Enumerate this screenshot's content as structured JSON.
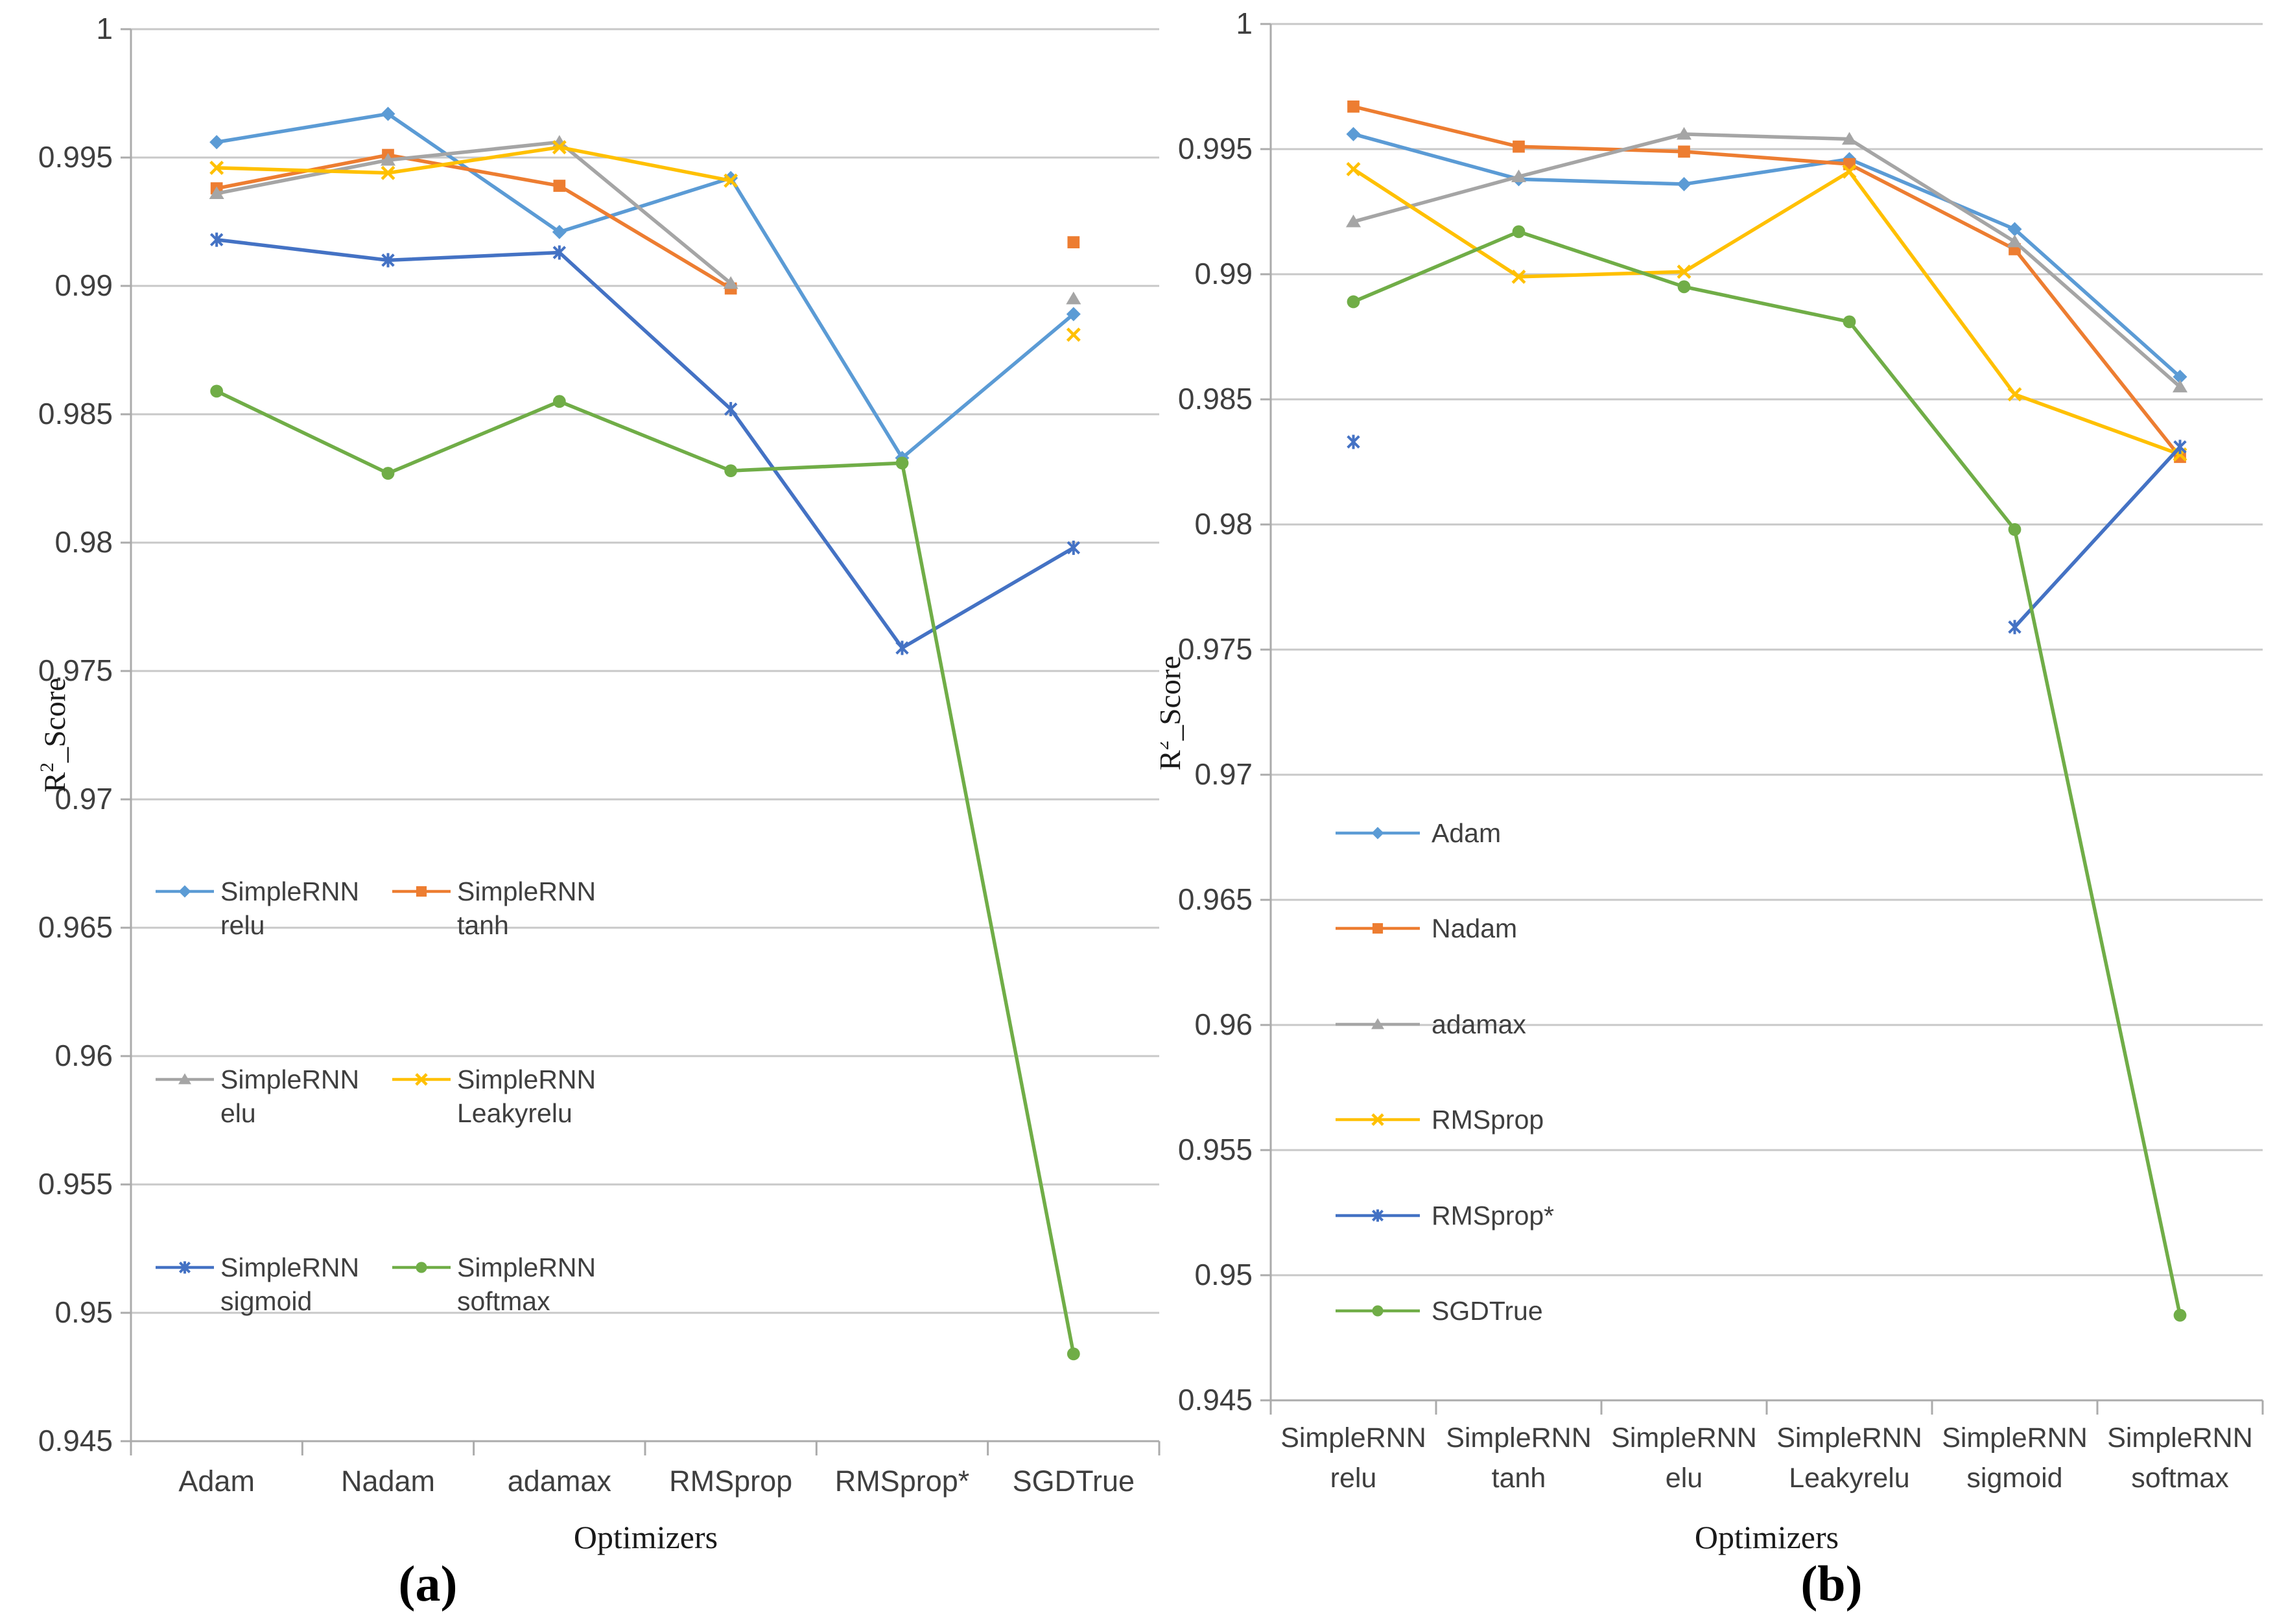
{
  "figure": {
    "background": "#ffffff",
    "grid_color": "#c8c8c8",
    "axis_color": "#ababab",
    "tick_text_color": "#3f3f3f",
    "title_text_color": "#1a1a1a",
    "series_colors": {
      "blue": "#5B9BD5",
      "orange": "#ED7D31",
      "gray": "#A5A5A5",
      "gold": "#FFC000",
      "dark_blue": "#4472C4",
      "green": "#70AD47"
    }
  },
  "chart_data": [
    {
      "type": "line",
      "caption": "(a)",
      "xlabel": "Optimizers",
      "ylabel": {
        "base": "R",
        "sup": "2",
        "rest": "_Score"
      },
      "ylim": [
        0.945,
        1.0
      ],
      "ytick_step": 0.005,
      "ytick_labels": [
        "1",
        "0.995",
        "0.99",
        "0.985",
        "0.98",
        "0.975",
        "0.97",
        "0.965",
        "0.96",
        "0.955",
        "0.95",
        "0.945"
      ],
      "grid": true,
      "legend_position": "inside-left-two-column",
      "categories": [
        "Adam",
        "Nadam",
        "adamax",
        "RMSprop",
        "RMSprop*",
        "SGDTrue"
      ],
      "series": [
        {
          "name": "SimpleRNN relu",
          "legend_lines": [
            "SimpleRNN",
            "relu"
          ],
          "color": "#5B9BD5",
          "marker": "diamond",
          "values": [
            0.9956,
            0.9967,
            0.9921,
            0.9942,
            0.9833,
            0.9889
          ]
        },
        {
          "name": "SimpleRNN tanh",
          "legend_lines": [
            "SimpleRNN",
            "tanh"
          ],
          "color": "#ED7D31",
          "marker": "square",
          "values": [
            0.9938,
            0.9951,
            0.9939,
            0.9899,
            null,
            0.9917
          ]
        },
        {
          "name": "SimpleRNN elu",
          "legend_lines": [
            "SimpleRNN",
            "elu"
          ],
          "color": "#A5A5A5",
          "marker": "triangle",
          "values": [
            0.9936,
            0.9949,
            0.9956,
            0.9901,
            null,
            0.9895
          ]
        },
        {
          "name": "SimpleRNN Leakyrelu",
          "legend_lines": [
            "SimpleRNN",
            "Leakyrelu"
          ],
          "color": "#FFC000",
          "marker": "x",
          "values": [
            0.9946,
            0.9944,
            0.9954,
            0.9941,
            null,
            0.9881
          ]
        },
        {
          "name": "SimpleRNN sigmoid",
          "legend_lines": [
            "SimpleRNN",
            "sigmoid"
          ],
          "color": "#4472C4",
          "marker": "asterisk",
          "values": [
            0.9918,
            0.991,
            0.9913,
            0.9852,
            0.9759,
            0.9798
          ]
        },
        {
          "name": "SimpleRNN softmax",
          "legend_lines": [
            "SimpleRNN",
            "softmax"
          ],
          "color": "#70AD47",
          "marker": "circle",
          "values": [
            0.9859,
            0.9827,
            0.9855,
            0.9828,
            0.9831,
            0.9484
          ]
        }
      ]
    },
    {
      "type": "line",
      "caption": "(b)",
      "xlabel": "Optimizers",
      "ylabel": {
        "base": "R",
        "sup": "2",
        "rest": "_Score"
      },
      "ylim": [
        0.945,
        1.0
      ],
      "ytick_step": 0.005,
      "ytick_labels": [
        "1",
        "0.995",
        "0.99",
        "0.985",
        "0.98",
        "0.975",
        "0.97",
        "0.965",
        "0.96",
        "0.955",
        "0.95",
        "0.945"
      ],
      "grid": true,
      "legend_position": "inside-left-column",
      "categories": [
        "SimpleRNN relu",
        "SimpleRNN tanh",
        "SimpleRNN elu",
        "SimpleRNN Leakyrelu",
        "SimpleRNN sigmoid",
        "SimpleRNN softmax"
      ],
      "category_lines": [
        [
          "SimpleRNN",
          "relu"
        ],
        [
          "SimpleRNN",
          "tanh"
        ],
        [
          "SimpleRNN",
          "elu"
        ],
        [
          "SimpleRNN",
          "Leakyrelu"
        ],
        [
          "SimpleRNN",
          "sigmoid"
        ],
        [
          "SimpleRNN",
          "softmax"
        ]
      ],
      "series": [
        {
          "name": "Adam",
          "legend_lines": [
            "Adam"
          ],
          "color": "#5B9BD5",
          "marker": "diamond",
          "values": [
            0.9956,
            0.9938,
            0.9936,
            0.9946,
            0.9918,
            0.9859
          ]
        },
        {
          "name": "Nadam",
          "legend_lines": [
            "Nadam"
          ],
          "color": "#ED7D31",
          "marker": "square",
          "values": [
            0.9967,
            0.9951,
            0.9949,
            0.9944,
            0.991,
            0.9827
          ]
        },
        {
          "name": "adamax",
          "legend_lines": [
            "adamax"
          ],
          "color": "#A5A5A5",
          "marker": "triangle",
          "values": [
            0.9921,
            0.9939,
            0.9956,
            0.9954,
            0.9913,
            0.9855
          ]
        },
        {
          "name": "RMSprop",
          "legend_lines": [
            "RMSprop"
          ],
          "color": "#FFC000",
          "marker": "x",
          "values": [
            0.9942,
            0.9899,
            0.9901,
            0.9941,
            0.9852,
            0.9828
          ]
        },
        {
          "name": "RMSprop*",
          "legend_lines": [
            "RMSprop*"
          ],
          "color": "#4472C4",
          "marker": "asterisk",
          "values": [
            0.9833,
            null,
            null,
            null,
            0.9759,
            0.9831
          ]
        },
        {
          "name": "SGDTrue",
          "legend_lines": [
            "SGDTrue"
          ],
          "color": "#70AD47",
          "marker": "circle",
          "values": [
            0.9889,
            0.9917,
            0.9895,
            0.9881,
            0.9798,
            0.9484
          ]
        }
      ]
    }
  ]
}
